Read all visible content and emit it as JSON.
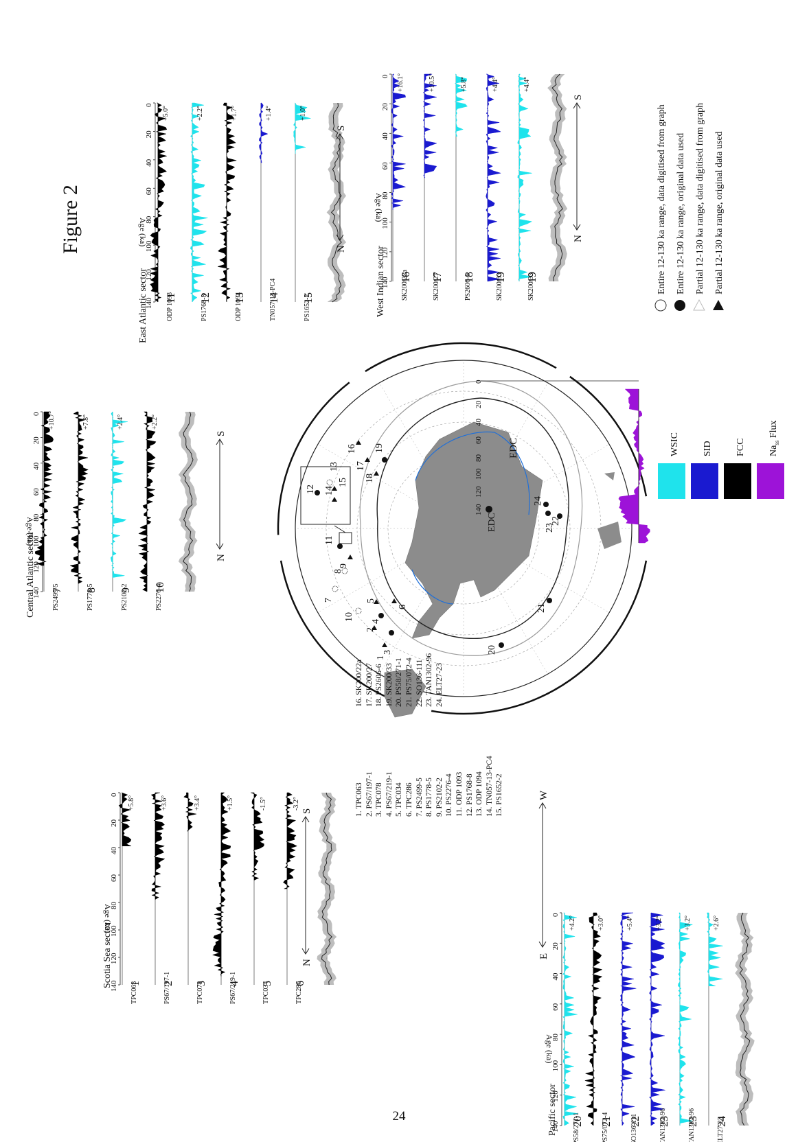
{
  "page_number": "24",
  "figure_title": "Figure 2",
  "age_axis_label": "Age (ka)",
  "age_ticks": [
    "0",
    "20",
    "40",
    "60",
    "80",
    "100",
    "120",
    "140"
  ],
  "sectors": [
    {
      "name": "Scotia Sea sector",
      "dir_left": "N",
      "dir_right": "S",
      "cores": [
        {
          "num": "1",
          "name": "TPC063",
          "amp": "+5.8°",
          "color": "black"
        },
        {
          "num": "2",
          "name": "PS67/197-1",
          "amp": "+3.6°",
          "color": "black"
        },
        {
          "num": "3",
          "name": "TPC078",
          "amp": "+3.4°",
          "color": "black"
        },
        {
          "num": "4",
          "name": "PS67/219-1",
          "amp": "+1.5°",
          "color": "black"
        },
        {
          "num": "5",
          "name": "TPC034",
          "amp": "-1.5°",
          "color": "black"
        },
        {
          "num": "6",
          "name": "TPC286",
          "amp": "-3.2°",
          "color": "black"
        }
      ]
    },
    {
      "name": "Central Atlantic sector",
      "dir_left": "N",
      "dir_right": "S",
      "cores": [
        {
          "num": "7",
          "name": "PS2499-5",
          "amp": "+10.7°",
          "color": "black"
        },
        {
          "num": "8",
          "name": "PS1778-5",
          "amp": "+7.8°",
          "color": "black"
        },
        {
          "num": "9",
          "name": "PS2102-2",
          "amp": "+2.4°",
          "color": "cyan"
        },
        {
          "num": "10",
          "name": "PS2276-4",
          "amp": "+2.2°",
          "color": "black"
        }
      ]
    },
    {
      "name": "East Atlantic sector",
      "dir_left": "N",
      "dir_right": "S",
      "cores": [
        {
          "num": "11",
          "name": "ODP 1093",
          "amp": "+5.0°",
          "color": "black"
        },
        {
          "num": "12",
          "name": "PS1768-8",
          "amp": "+2.2°",
          "color": "cyan"
        },
        {
          "num": "13",
          "name": "ODP 1094",
          "amp": "+1.7°",
          "color": "black"
        },
        {
          "num": "14",
          "name": "TN057-13-PC4",
          "amp": "+1.4°",
          "color": "blue"
        },
        {
          "num": "15",
          "name": "PS1652-2",
          "amp": "+1.0°",
          "color": "cyan"
        }
      ]
    },
    {
      "name": "West Indian sector",
      "dir_left": "N",
      "dir_right": "S",
      "cores": [
        {
          "num": "16",
          "name": "SK200/22a",
          "amp": "+16.1°",
          "color": "blue"
        },
        {
          "num": "17",
          "name": "SK200/27",
          "amp": "+10.5°",
          "color": "blue"
        },
        {
          "num": "18",
          "name": "PS2606-6",
          "amp": "+5.8°",
          "color": "cyan"
        },
        {
          "num": "19",
          "name": "SK200/33",
          "amp": "+4.4°",
          "color": "blue"
        },
        {
          "num": "19",
          "name": "SK200/33",
          "amp": "+4.4°",
          "color": "cyan"
        }
      ]
    },
    {
      "name": "Pacific sector",
      "dir_left": "E",
      "dir_right": "W",
      "cores": [
        {
          "num": "20",
          "name": "PS58/271-1",
          "amp": "+4.2°",
          "color": "cyan"
        },
        {
          "num": "21",
          "name": "PS75/072-4",
          "amp": "+3.0°",
          "color": "black"
        },
        {
          "num": "22",
          "name": "SO136-111",
          "amp": "+5.4°",
          "color": "blue"
        },
        {
          "num": "23",
          "name": "TAN1302-96",
          "amp": "+3.2°",
          "color": "blue"
        },
        {
          "num": "23",
          "name": "TAN1302-96",
          "amp": "+3.2°",
          "color": "cyan"
        },
        {
          "num": "24",
          "name": "ELT27-23",
          "amp": "+2.6°",
          "color": "cyan"
        }
      ]
    }
  ],
  "core_list": [
    "1. TPC063",
    "2. PS67/197-1",
    "3. TPC078",
    "4. PS67/219-1",
    "5. TPC034",
    "6. TPC286",
    "7. PS2499-5",
    "8. PS1778-5",
    "9. PS2102-2",
    "10. PS2276-4",
    "11. ODP 1093",
    "12. PS1768-8",
    "13. ODP 1094",
    "14. TN057-13-PC4",
    "15. PS1652-2",
    "16. SK200/22a",
    "17. SK200/27",
    "18. PS2606-6",
    "19. SK200/33",
    "20. PS58/271-1",
    "21. PS75/072-4",
    "22. SO136-111",
    "23. TAN1302-96",
    "24. ELT27-23"
  ],
  "edc_label": "EDC",
  "edc_ticks": [
    "0",
    "20",
    "40",
    "60",
    "80",
    "100",
    "120",
    "140"
  ],
  "color_legend": [
    {
      "label": "WSIC",
      "color": "#1fe3ec"
    },
    {
      "label": "SID",
      "color": "#1a1ad0"
    },
    {
      "label": "FCC",
      "color": "#000000"
    },
    {
      "label": "Na",
      "sub": "ss",
      "suffix": " Flux",
      "color": "#9d13d8"
    }
  ],
  "symbol_legend": [
    {
      "symbol": "open-circle",
      "label": "Entire 12-130 ka range, data digitised from graph"
    },
    {
      "symbol": "filled-circle",
      "label": "Entire 12-130 ka range, original data used"
    },
    {
      "symbol": "open-triangle",
      "label": "Partial 12-130 ka range, data digitised from graph"
    },
    {
      "symbol": "filled-triangle",
      "label": "Partial 12-130 ka range, original data used"
    }
  ],
  "map_labels": [
    "1",
    "2",
    "3",
    "4",
    "5",
    "6",
    "7",
    "8",
    "9",
    "10",
    "11",
    "12",
    "13",
    "14",
    "15",
    "16",
    "17",
    "18",
    "19",
    "20",
    "21",
    "22",
    "23",
    "24",
    "EDC"
  ],
  "colors": {
    "cyan": "#1fe3ec",
    "blue": "#1a1ad0",
    "black": "#000000",
    "purple": "#9d13d8",
    "land": "#8c8c8c",
    "shade": "#bdbdbd",
    "front": "#1e6fd9"
  }
}
